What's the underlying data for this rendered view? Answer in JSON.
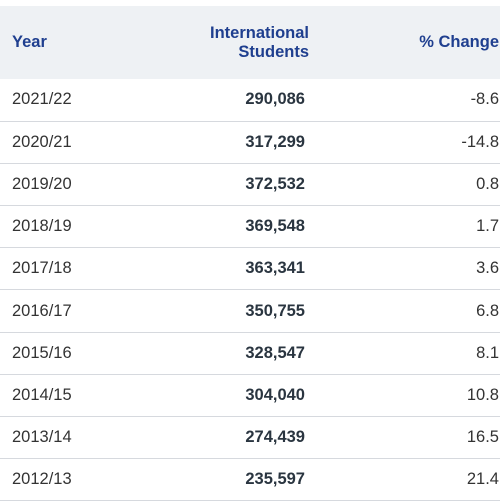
{
  "table": {
    "headers": {
      "year": "Year",
      "students": [
        "International",
        "Students"
      ],
      "change": "% Change"
    },
    "rows": [
      {
        "year": "2021/22",
        "students": "290,086",
        "change": "-8.6"
      },
      {
        "year": "2020/21",
        "students": "317,299",
        "change": "-14.8"
      },
      {
        "year": "2019/20",
        "students": "372,532",
        "change": "0.8"
      },
      {
        "year": "2018/19",
        "students": "369,548",
        "change": "1.7"
      },
      {
        "year": "2017/18",
        "students": "363,341",
        "change": "3.6"
      },
      {
        "year": "2016/17",
        "students": "350,755",
        "change": "6.8"
      },
      {
        "year": "2015/16",
        "students": "328,547",
        "change": "8.1"
      },
      {
        "year": "2014/15",
        "students": "304,040",
        "change": "10.8"
      },
      {
        "year": "2013/14",
        "students": "274,439",
        "change": "16.5"
      },
      {
        "year": "2012/13",
        "students": "235,597",
        "change": "21.4"
      }
    ]
  },
  "colors": {
    "header_text": "#1f3f8f",
    "header_bg": "#eef1f4",
    "row_border": "#d6d9de",
    "body_text": "#333333"
  }
}
